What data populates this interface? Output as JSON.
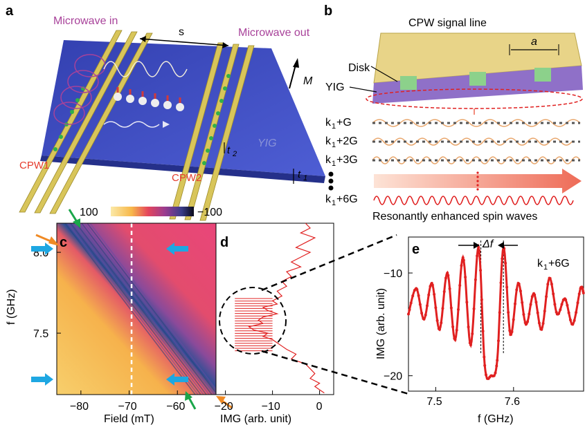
{
  "panels": {
    "a": {
      "label": "a",
      "microwave_in": "Microwave in",
      "microwave_out": "Microwave out",
      "spacing": "s",
      "magnetization": "M",
      "cpw1": "CPW1",
      "cpw2": "CPW2",
      "yig": "YIG",
      "t2": "t",
      "t2_sub": "2",
      "t1": "t",
      "t1_sub": "1"
    },
    "b": {
      "label": "b",
      "title": "CPW signal line",
      "period": "a",
      "disk": "Disk",
      "yig": "YIG",
      "modes": [
        {
          "k": "k",
          "sub": "1",
          "rest": "+G"
        },
        {
          "k": "k",
          "sub": "1",
          "rest": "+2G"
        },
        {
          "k": "k",
          "sub": "1",
          "rest": "+3G"
        },
        {
          "k": "k",
          "sub": "1",
          "rest": "+6G"
        }
      ],
      "caption": "Resonantly enhanced spin waves"
    },
    "c": {
      "label": "c"
    },
    "d": {
      "label": "d"
    },
    "e": {
      "label": "e",
      "delta": "Δf",
      "mode": "k",
      "mode_sub": "1",
      "mode_rest": "+6G"
    }
  },
  "colorbar": {
    "max_label": "100",
    "min_label": "−100"
  },
  "colors": {
    "line": "#e02020",
    "cyan_arrow": "#1ea7e2",
    "orange_arrow": "#f08a24",
    "green_arrow": "#1aa64a"
  },
  "chart_data": [
    {
      "type": "heatmap",
      "panel": "c",
      "xlabel": "Field (mT)",
      "ylabel": "f (GHz)",
      "xlim": [
        -85,
        -52
      ],
      "ylim": [
        7.12,
        8.18
      ],
      "xticks": [
        "−80",
        "−70",
        "−60"
      ],
      "yticks": [
        "8.0",
        "7.5"
      ],
      "colorbar": [
        100,
        -100
      ],
      "marker_field": -69.5
    },
    {
      "type": "line",
      "panel": "d",
      "xlabel": "IMG (arb. unit)",
      "xlim": [
        -22,
        3
      ],
      "ylim": [
        7.12,
        8.18
      ],
      "xticks": [
        "−20",
        "−10",
        "0"
      ],
      "x": [
        -3,
        -2,
        -4,
        -1,
        -3,
        -5,
        -2,
        -4,
        -6,
        -4,
        -7,
        -6,
        -8,
        -7,
        -9,
        -8,
        -10,
        -9,
        -12,
        -11,
        -9,
        -12,
        -13,
        -12,
        -15,
        -14,
        -11,
        -12,
        -10,
        -9,
        -8,
        -7,
        -5,
        -6,
        -3,
        -2,
        -1,
        -2,
        0,
        -1,
        0,
        1
      ],
      "y": [
        8.18,
        8.15,
        8.12,
        8.09,
        8.06,
        8.03,
        8.0,
        7.97,
        7.94,
        7.91,
        7.88,
        7.85,
        7.82,
        7.79,
        7.76,
        7.73,
        7.7,
        7.68,
        7.66,
        7.64,
        7.62,
        7.6,
        7.58,
        7.56,
        7.54,
        7.52,
        7.5,
        7.48,
        7.46,
        7.44,
        7.42,
        7.4,
        7.37,
        7.34,
        7.31,
        7.28,
        7.25,
        7.22,
        7.19,
        7.17,
        7.15,
        7.13
      ]
    },
    {
      "type": "line",
      "panel": "e",
      "xlabel": "f (GHz)",
      "ylabel": "IMG (arb. unit)",
      "xlim": [
        7.465,
        7.69
      ],
      "ylim": [
        -21.5,
        -6.5
      ],
      "xticks": [
        "7.5",
        "7.6"
      ],
      "yticks": [
        "−10",
        "−20"
      ],
      "x": [
        7.465,
        7.475,
        7.485,
        7.495,
        7.505,
        7.515,
        7.525,
        7.535,
        7.545,
        7.555,
        7.563,
        7.571,
        7.579,
        7.587,
        7.596,
        7.606,
        7.616,
        7.626,
        7.636,
        7.646,
        7.656,
        7.666,
        7.676,
        7.686,
        7.69
      ],
      "y": [
        -14,
        -11.5,
        -14.5,
        -11,
        -15.5,
        -10,
        -16.5,
        -8.5,
        -17,
        -7.5,
        -19,
        -20,
        -18.5,
        -7.5,
        -16,
        -11,
        -15,
        -12,
        -15.5,
        -10.5,
        -14,
        -12.5,
        -15,
        -11.5,
        -12
      ],
      "marker_x": [
        7.558,
        7.587
      ]
    }
  ]
}
